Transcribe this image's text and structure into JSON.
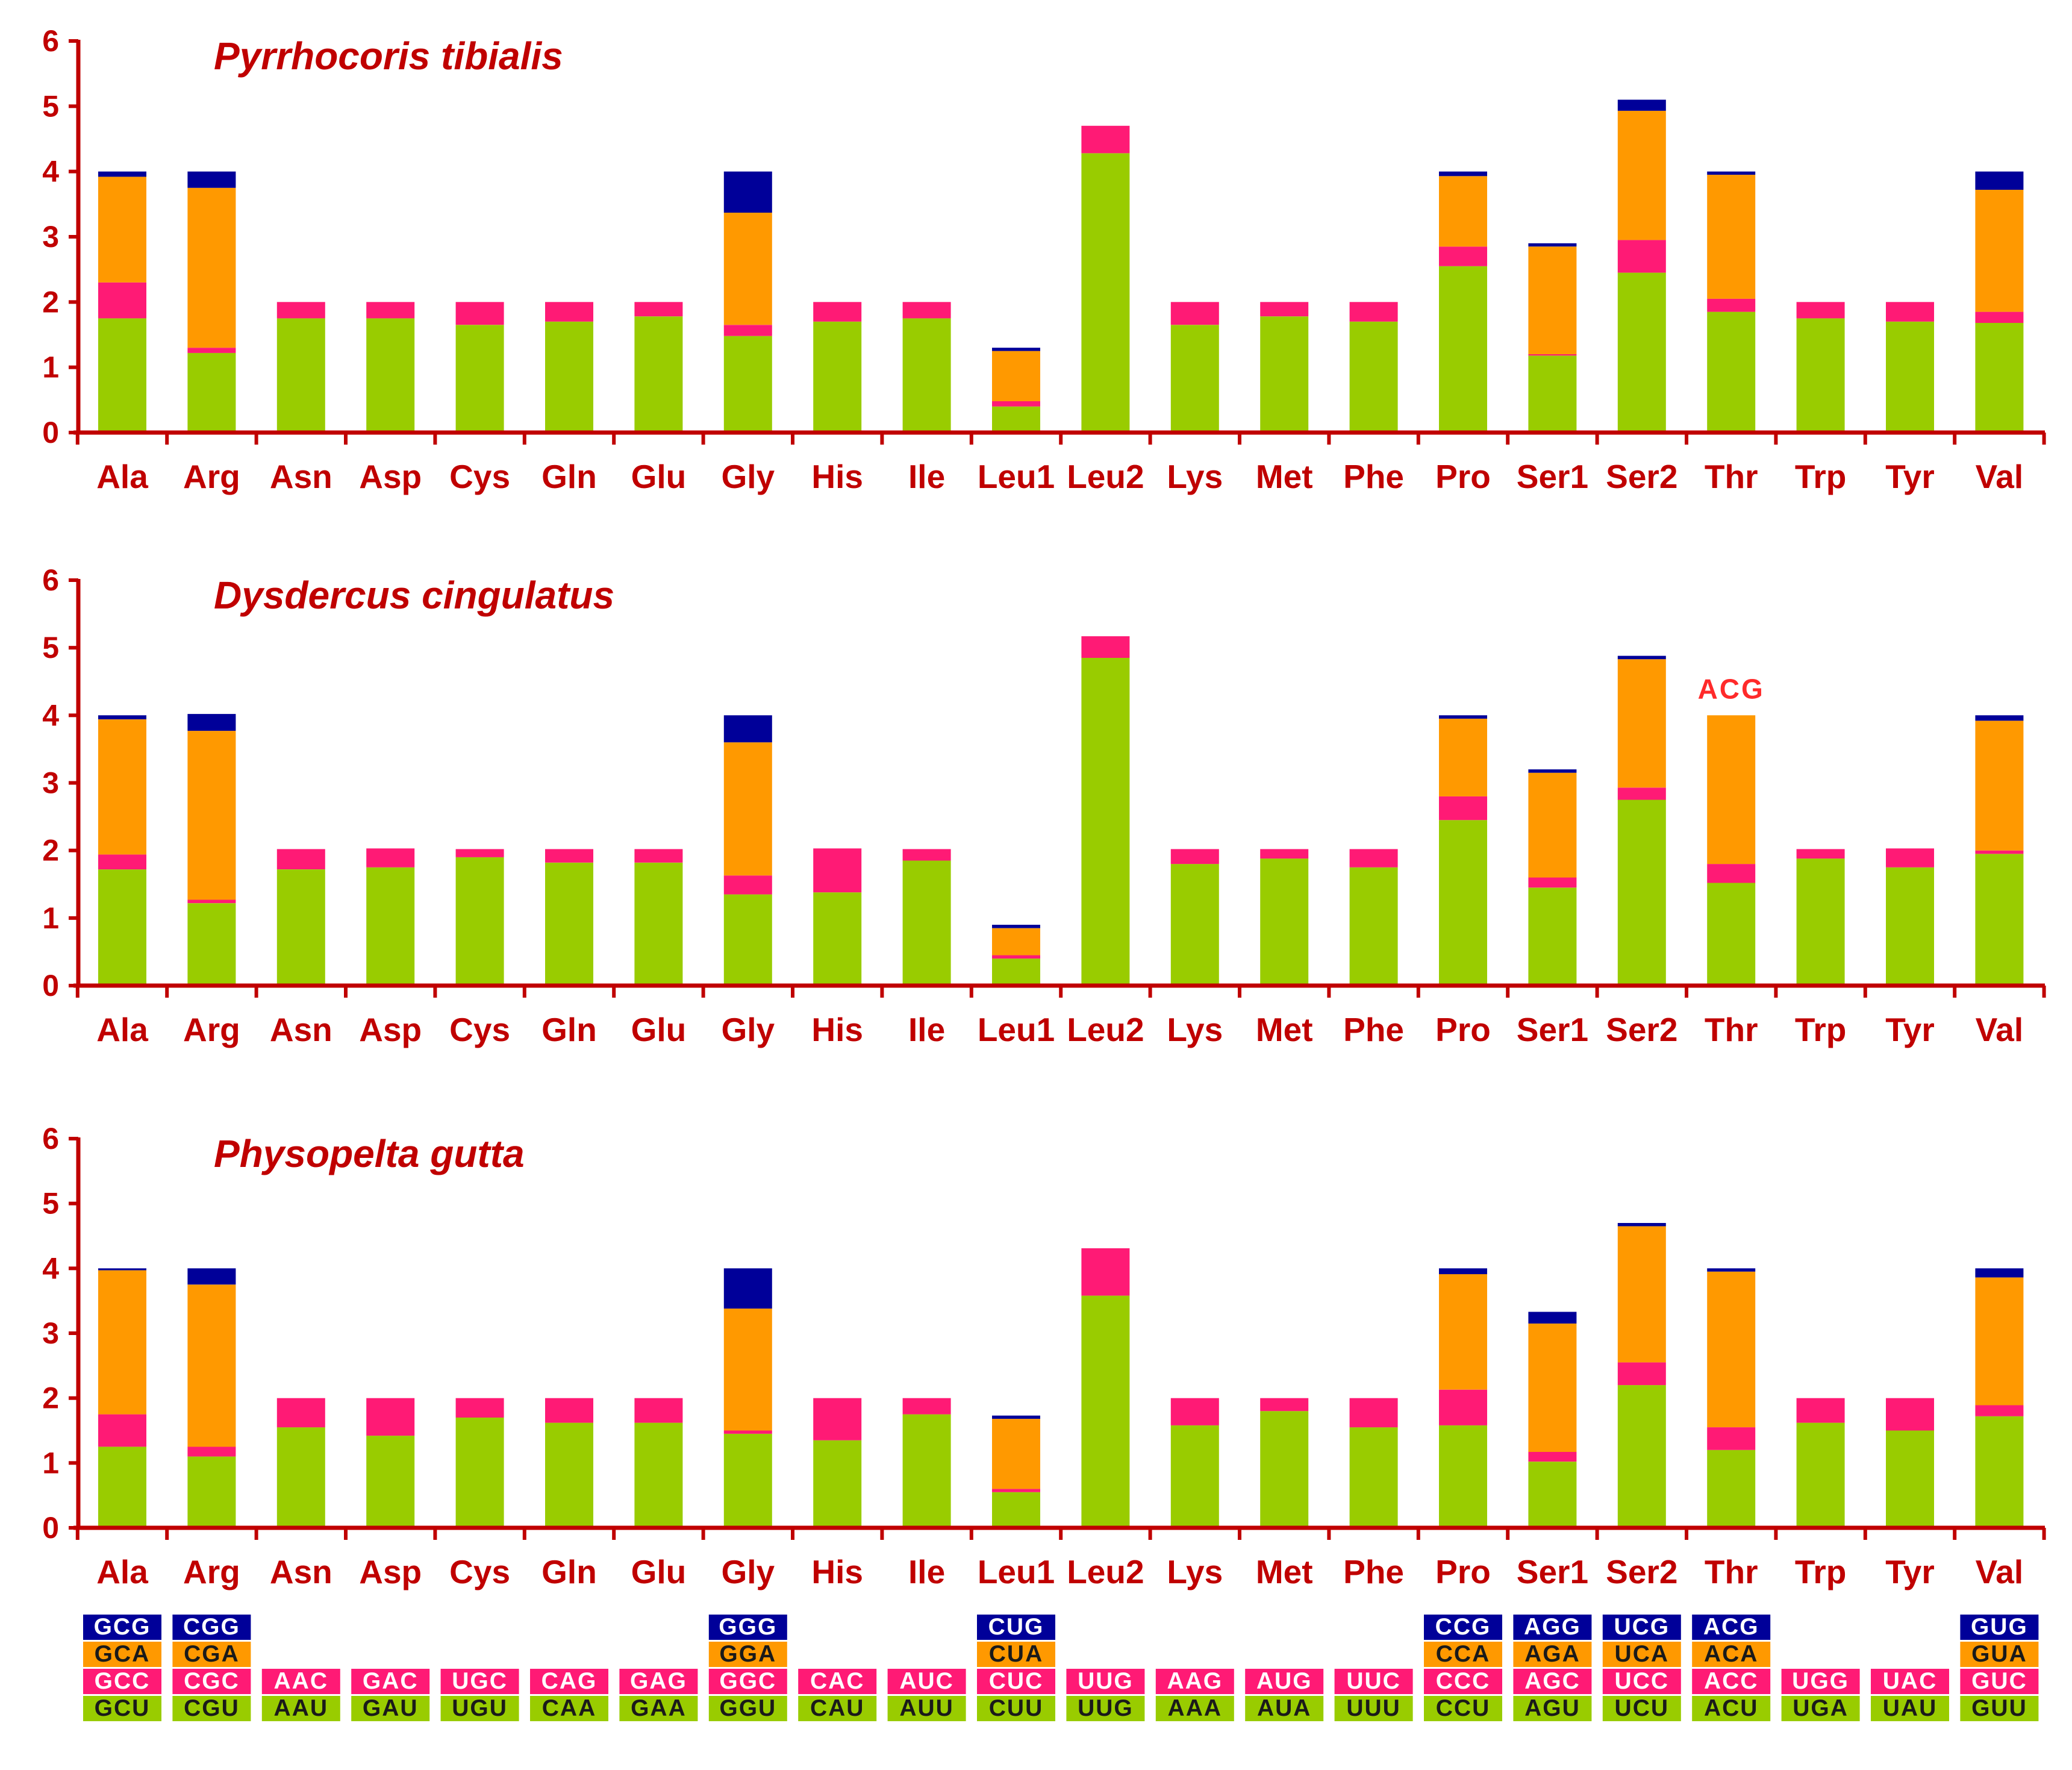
{
  "colors": {
    "axis": "#c00000",
    "title": "#c00000",
    "green": "#99cc00",
    "pink": "#ff1a75",
    "orange": "#ff9900",
    "navy": "#000099",
    "annotation": "#ff2a2a"
  },
  "chart_data": [
    {
      "type": "bar",
      "stacked": true,
      "title": "Pyrrhocoris tibialis",
      "ylim": [
        0,
        6
      ],
      "yticks": [
        0,
        1,
        2,
        3,
        4,
        5,
        6
      ],
      "categories": [
        "Ala",
        "Arg",
        "Asn",
        "Asp",
        "Cys",
        "Gln",
        "Glu",
        "Gly",
        "His",
        "Ile",
        "Leu1",
        "Leu2",
        "Lys",
        "Met",
        "Phe",
        "Pro",
        "Ser1",
        "Ser2",
        "Thr",
        "Trp",
        "Tyr",
        "Val"
      ],
      "series": [
        {
          "name": "codon 1",
          "color": "green",
          "values": [
            1.75,
            1.22,
            1.75,
            1.75,
            1.65,
            1.7,
            1.78,
            1.48,
            1.7,
            1.75,
            0.4,
            4.28,
            1.65,
            1.78,
            1.7,
            2.55,
            1.18,
            2.45,
            1.85,
            1.75,
            1.7,
            1.68
          ]
        },
        {
          "name": "codon 2",
          "color": "pink",
          "values": [
            0.55,
            0.08,
            0.25,
            0.25,
            0.35,
            0.3,
            0.22,
            0.17,
            0.3,
            0.25,
            0.08,
            0.42,
            0.35,
            0.22,
            0.3,
            0.3,
            0.02,
            0.5,
            0.2,
            0.25,
            0.3,
            0.17
          ]
        },
        {
          "name": "codon 3",
          "color": "orange",
          "values": [
            1.62,
            2.45,
            0,
            0,
            0,
            0,
            0,
            1.72,
            0,
            0,
            0.77,
            0,
            0,
            0,
            0,
            1.08,
            1.65,
            1.98,
            1.9,
            0,
            0,
            1.87
          ]
        },
        {
          "name": "codon 4",
          "color": "navy",
          "values": [
            0.08,
            0.25,
            0,
            0,
            0,
            0,
            0,
            0.63,
            0,
            0,
            0.05,
            0,
            0,
            0,
            0,
            0.07,
            0.05,
            0.17,
            0.05,
            0,
            0,
            0.28
          ]
        }
      ],
      "annotations": []
    },
    {
      "type": "bar",
      "stacked": true,
      "title": "Dysdercus cingulatus",
      "ylim": [
        0,
        6
      ],
      "yticks": [
        0,
        1,
        2,
        3,
        4,
        5,
        6
      ],
      "categories": [
        "Ala",
        "Arg",
        "Asn",
        "Asp",
        "Cys",
        "Gln",
        "Glu",
        "Gly",
        "His",
        "Ile",
        "Leu1",
        "Leu2",
        "Lys",
        "Met",
        "Phe",
        "Pro",
        "Ser1",
        "Ser2",
        "Thr",
        "Trp",
        "Tyr",
        "Val"
      ],
      "series": [
        {
          "name": "codon 1",
          "color": "green",
          "values": [
            1.72,
            1.22,
            1.72,
            1.75,
            1.9,
            1.82,
            1.82,
            1.35,
            1.38,
            1.85,
            0.4,
            4.85,
            1.8,
            1.88,
            1.75,
            2.45,
            1.45,
            2.75,
            1.52,
            1.88,
            1.75,
            1.95
          ]
        },
        {
          "name": "codon 2",
          "color": "pink",
          "values": [
            0.22,
            0.05,
            0.3,
            0.28,
            0.12,
            0.2,
            0.2,
            0.28,
            0.65,
            0.17,
            0.05,
            0.32,
            0.22,
            0.14,
            0.27,
            0.35,
            0.15,
            0.18,
            0.28,
            0.14,
            0.28,
            0.05
          ]
        },
        {
          "name": "codon 3",
          "color": "orange",
          "values": [
            2.0,
            2.5,
            0,
            0,
            0,
            0,
            0,
            1.97,
            0,
            0,
            0.4,
            0,
            0,
            0,
            0,
            1.15,
            1.55,
            1.9,
            2.2,
            0,
            0,
            1.92
          ]
        },
        {
          "name": "codon 4",
          "color": "navy",
          "values": [
            0.06,
            0.25,
            0,
            0,
            0,
            0,
            0,
            0.4,
            0,
            0,
            0.05,
            0,
            0,
            0,
            0,
            0.05,
            0.05,
            0.05,
            0,
            0,
            0,
            0.08
          ]
        }
      ],
      "annotations": [
        {
          "category": "Thr",
          "text": "ACG"
        }
      ]
    },
    {
      "type": "bar",
      "stacked": true,
      "title": "Physopelta gutta",
      "ylim": [
        0,
        6
      ],
      "yticks": [
        0,
        1,
        2,
        3,
        4,
        5,
        6
      ],
      "categories": [
        "Ala",
        "Arg",
        "Asn",
        "Asp",
        "Cys",
        "Gln",
        "Glu",
        "Gly",
        "His",
        "Ile",
        "Leu1",
        "Leu2",
        "Lys",
        "Met",
        "Phe",
        "Pro",
        "Ser1",
        "Ser2",
        "Thr",
        "Trp",
        "Tyr",
        "Val"
      ],
      "series": [
        {
          "name": "codon 1",
          "color": "green",
          "values": [
            1.25,
            1.1,
            1.55,
            1.42,
            1.7,
            1.62,
            1.62,
            1.45,
            1.35,
            1.75,
            0.55,
            3.58,
            1.58,
            1.8,
            1.55,
            1.58,
            1.02,
            2.2,
            1.2,
            1.62,
            1.5,
            1.72
          ]
        },
        {
          "name": "codon 2",
          "color": "pink",
          "values": [
            0.5,
            0.15,
            0.45,
            0.58,
            0.3,
            0.38,
            0.38,
            0.05,
            0.65,
            0.25,
            0.05,
            0.73,
            0.42,
            0.2,
            0.45,
            0.55,
            0.15,
            0.35,
            0.35,
            0.38,
            0.5,
            0.17
          ]
        },
        {
          "name": "codon 3",
          "color": "orange",
          "values": [
            2.22,
            2.5,
            0,
            0,
            0,
            0,
            0,
            1.88,
            0,
            0,
            1.08,
            0,
            0,
            0,
            0,
            1.78,
            1.98,
            2.1,
            2.4,
            0,
            0,
            1.97
          ]
        },
        {
          "name": "codon 4",
          "color": "navy",
          "values": [
            0.03,
            0.25,
            0,
            0,
            0,
            0,
            0,
            0.62,
            0,
            0,
            0.05,
            0,
            0,
            0,
            0,
            0.09,
            0.18,
            0.05,
            0.05,
            0,
            0,
            0.14
          ]
        }
      ],
      "annotations": []
    }
  ],
  "codon_legend": [
    [
      "GCG",
      "GCA",
      "GCC",
      "GCU"
    ],
    [
      "CGG",
      "CGA",
      "CGC",
      "CGU"
    ],
    [
      "",
      "",
      "AAC",
      "AAU"
    ],
    [
      "",
      "",
      "GAC",
      "GAU"
    ],
    [
      "",
      "",
      "UGC",
      "UGU"
    ],
    [
      "",
      "",
      "CAG",
      "CAA"
    ],
    [
      "",
      "",
      "GAG",
      "GAA"
    ],
    [
      "GGG",
      "GGA",
      "GGC",
      "GGU"
    ],
    [
      "",
      "",
      "CAC",
      "CAU"
    ],
    [
      "",
      "",
      "AUC",
      "AUU"
    ],
    [
      "CUG",
      "CUA",
      "CUC",
      "CUU"
    ],
    [
      "",
      "",
      "UUG",
      "UUG"
    ],
    [
      "",
      "",
      "AAG",
      "AAA"
    ],
    [
      "",
      "",
      "AUG",
      "AUA"
    ],
    [
      "",
      "",
      "UUC",
      "UUU"
    ],
    [
      "CCG",
      "CCA",
      "CCC",
      "CCU"
    ],
    [
      "AGG",
      "AGA",
      "AGC",
      "AGU"
    ],
    [
      "UCG",
      "UCA",
      "UCC",
      "UCU"
    ],
    [
      "ACG",
      "ACA",
      "ACC",
      "ACU"
    ],
    [
      "",
      "",
      "UGG",
      "UGA"
    ],
    [
      "",
      "",
      "UAC",
      "UAU"
    ],
    [
      "GUG",
      "GUA",
      "GUC",
      "GUU"
    ]
  ]
}
